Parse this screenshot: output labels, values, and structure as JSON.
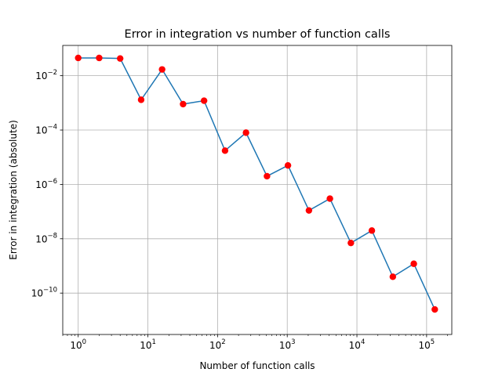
{
  "chart_data": {
    "type": "line",
    "title": "Error in integration vs number of function calls",
    "xlabel": "Number of function calls",
    "ylabel": "Error in integration (absolute)",
    "x_scale": "log",
    "y_scale": "log",
    "xlim": [
      0.6,
      230000
    ],
    "ylim": [
      3e-12,
      0.13
    ],
    "grid": true,
    "x_ticks": [
      {
        "value": 1,
        "base": "10",
        "exp": "0"
      },
      {
        "value": 10,
        "base": "10",
        "exp": "1"
      },
      {
        "value": 100,
        "base": "10",
        "exp": "2"
      },
      {
        "value": 1000,
        "base": "10",
        "exp": "3"
      },
      {
        "value": 10000,
        "base": "10",
        "exp": "4"
      },
      {
        "value": 100000,
        "base": "10",
        "exp": "5"
      }
    ],
    "y_ticks": [
      {
        "value": 1e-10,
        "base": "10",
        "exp": "−10"
      },
      {
        "value": 1e-08,
        "base": "10",
        "exp": "−8"
      },
      {
        "value": 1e-06,
        "base": "10",
        "exp": "−6"
      },
      {
        "value": 0.0001,
        "base": "10",
        "exp": "−4"
      },
      {
        "value": 0.01,
        "base": "10",
        "exp": "−2"
      }
    ],
    "series": [
      {
        "line_color": "#1f77b4",
        "marker_color": "#ff0000",
        "x": [
          1,
          2,
          4,
          8,
          16,
          32,
          64,
          128,
          256,
          512,
          1024,
          2048,
          4096,
          8192,
          16384,
          32768,
          65536,
          131072
        ],
        "y": [
          0.045,
          0.045,
          0.043,
          0.0013,
          0.017,
          0.0009,
          0.0012,
          1.75e-05,
          8e-05,
          2e-06,
          5e-06,
          1.1e-07,
          3e-07,
          7e-09,
          2e-08,
          4e-10,
          1.2e-09,
          2.5e-11
        ]
      }
    ]
  }
}
